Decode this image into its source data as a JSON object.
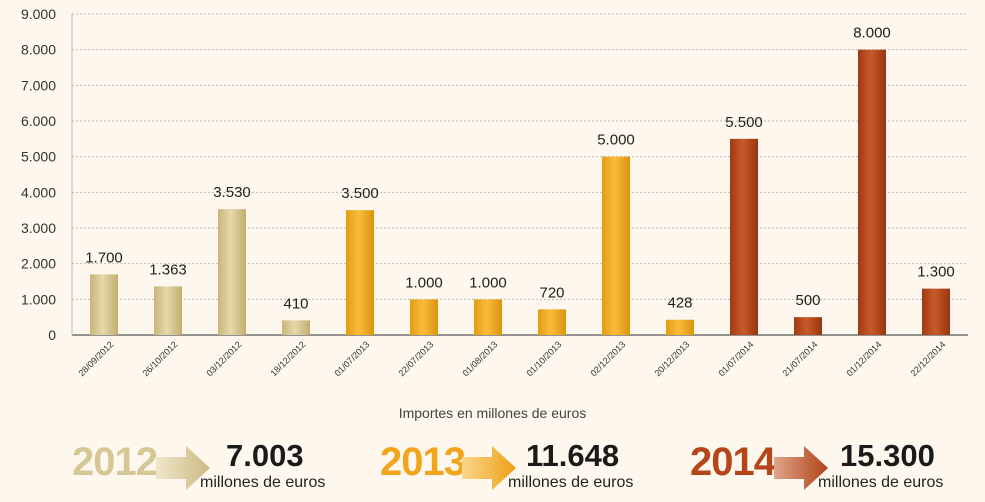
{
  "chart_data": {
    "type": "bar",
    "categories": [
      "28/09/2012",
      "26/10/2012",
      "03/12/2012",
      "18/12/2012",
      "01/07/2013",
      "22/07/2013",
      "01/08/2013",
      "01/10/2013",
      "02/12/2013",
      "20/12/2013",
      "01/07/2014",
      "21/07/2014",
      "01/12/2014",
      "22/12/2014"
    ],
    "values": [
      1700,
      1363,
      3530,
      410,
      3500,
      1000,
      1000,
      720,
      5000,
      428,
      5500,
      500,
      8000,
      1300
    ],
    "value_labels": [
      "1.700",
      "1.363",
      "3.530",
      "410",
      "3.500",
      "1.000",
      "1.000",
      "720",
      "5.000",
      "428",
      "5.500",
      "500",
      "8.000",
      "1.300"
    ],
    "years": [
      "2012",
      "2012",
      "2012",
      "2012",
      "2013",
      "2013",
      "2013",
      "2013",
      "2013",
      "2013",
      "2014",
      "2014",
      "2014",
      "2014"
    ],
    "ylim": [
      0,
      9000
    ],
    "yticks": [
      0,
      1000,
      2000,
      3000,
      4000,
      5000,
      6000,
      7000,
      8000,
      9000
    ],
    "ytick_labels": [
      "0",
      "1.000",
      "2.000",
      "3.000",
      "4.000",
      "5.000",
      "6.000",
      "7.000",
      "8.000",
      "9.000"
    ],
    "xlabel": "Importes en millones de euros",
    "ylabel": "",
    "grid": true
  },
  "colors": {
    "2012": "#d8c794",
    "2013": "#f0a820",
    "2014": "#b5461a",
    "grid": "#b9b9b9"
  },
  "summary": [
    {
      "year": "2012",
      "total": "7.003",
      "unit": "millones de euros"
    },
    {
      "year": "2013",
      "total": "11.648",
      "unit": "millones de euros"
    },
    {
      "year": "2014",
      "total": "15.300",
      "unit": "millones de euros"
    }
  ]
}
